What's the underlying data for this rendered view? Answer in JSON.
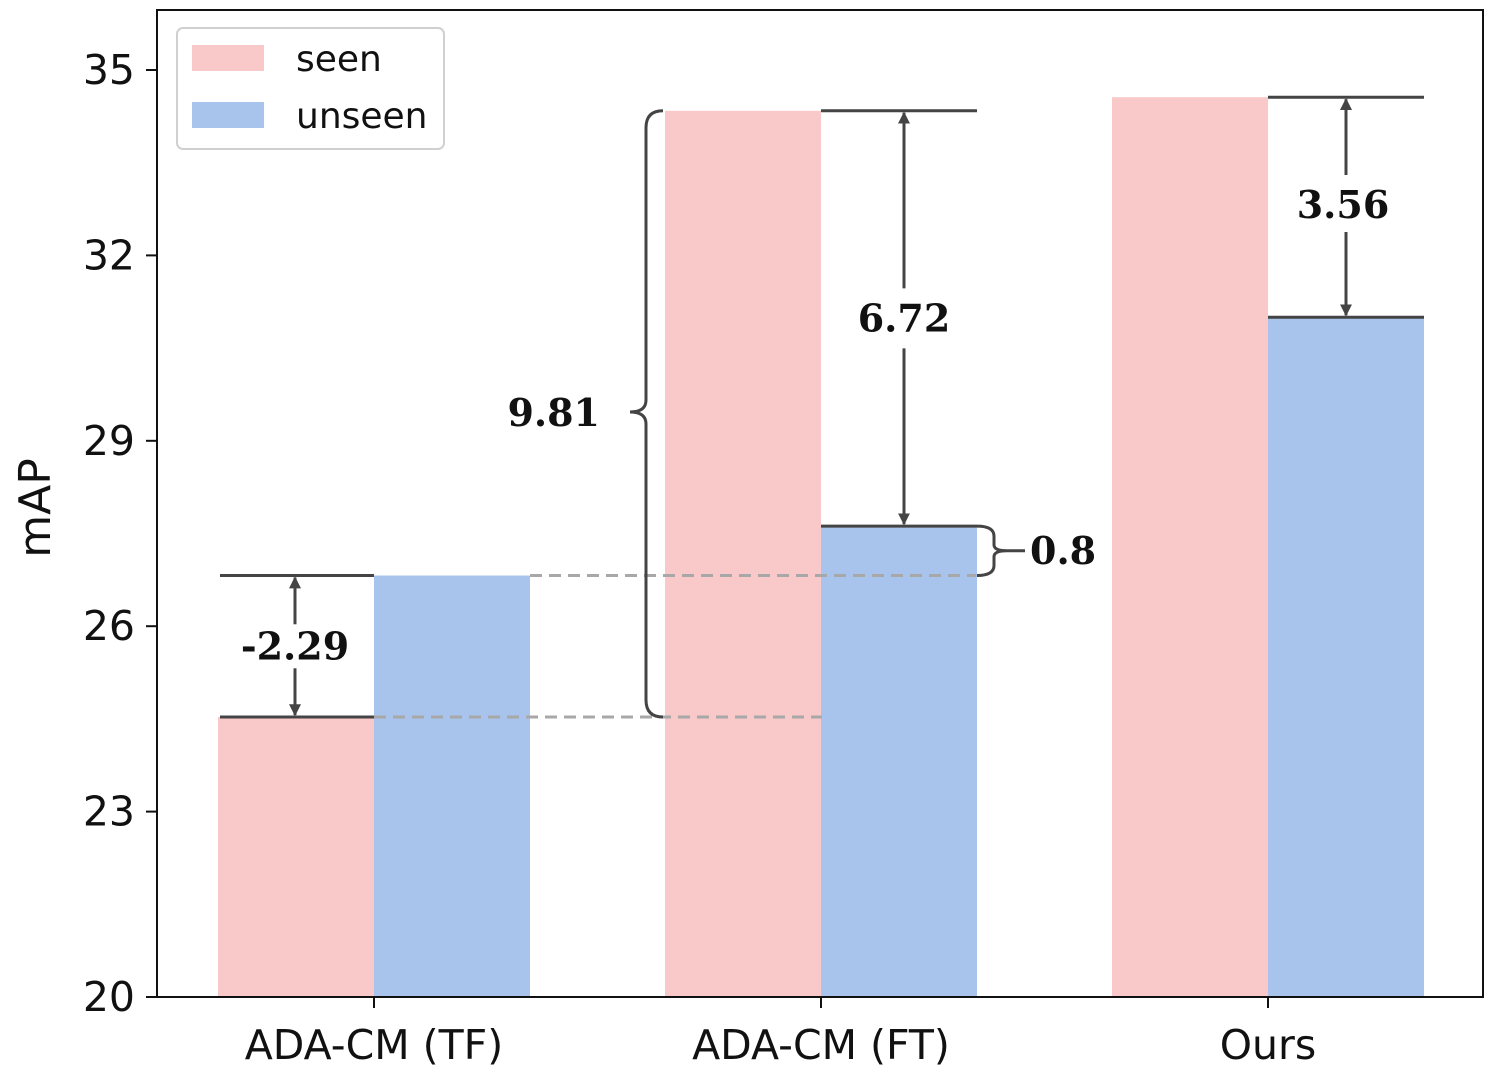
{
  "chart_data": {
    "type": "bar",
    "categories": [
      "ADA-CM (TF)",
      "ADA-CM (FT)",
      "Ours"
    ],
    "series": [
      {
        "name": "seen",
        "color": "#f9c9c9",
        "values": [
          24.53,
          34.34,
          34.56
        ]
      },
      {
        "name": "unseen",
        "color": "#a9c4ec",
        "values": [
          26.82,
          27.62,
          31.0
        ]
      }
    ],
    "ylabel": "mAP",
    "xlabel": "",
    "ylim": [
      20,
      36
    ],
    "yticks": [
      "20",
      "23",
      "26",
      "29",
      "32",
      "35"
    ],
    "legend": "top-left",
    "grid": false,
    "annotations": {
      "tf_gap": "-2.29",
      "ft_gap": "6.72",
      "ours_gap": "3.56",
      "seen_gain": "9.81",
      "unseen_gain": "0.8"
    }
  }
}
